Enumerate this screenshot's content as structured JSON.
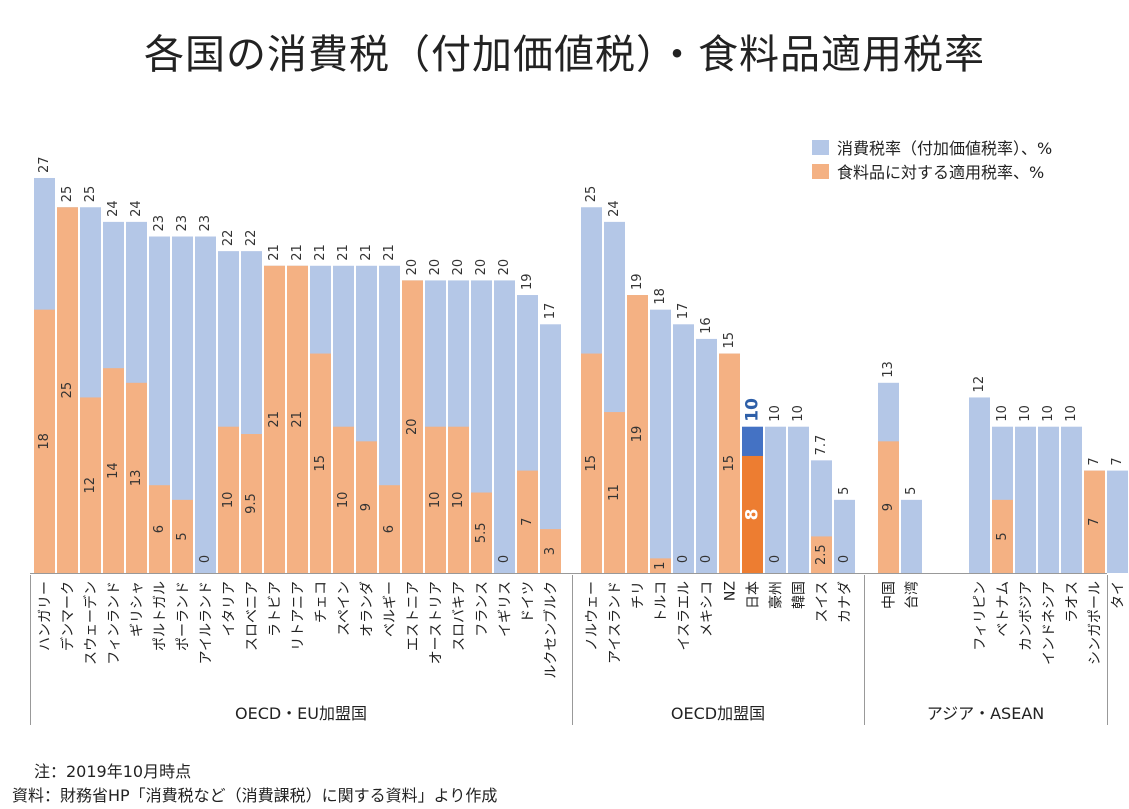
{
  "title": "各国の消費税（付加価値税）・食料品適用税率",
  "colors": {
    "vat": "#b4c7e7",
    "food": "#f4b183",
    "japan_vat": "#4472c4",
    "japan_food": "#ed7d31",
    "japan_vat_label": "#2e5fa8",
    "japan_food_label": "#ffffff"
  },
  "legend": {
    "vat": "消費税率（付加価値税率）、%",
    "food": "食料品に対する適用税率、%"
  },
  "chart_data": {
    "type": "bar",
    "title": "各国の消費税（付加価値税）・食料品適用税率",
    "ylim": [
      0,
      27
    ],
    "grid": false,
    "legend_position": "top-right",
    "series": [
      {
        "name": "消費税率（付加価値税率）、%",
        "key": "vat"
      },
      {
        "name": "食料品に対する適用税率、%",
        "key": "food"
      }
    ],
    "groups": [
      {
        "label": "OECD・EU加盟国",
        "countries": [
          {
            "name": "ハンガリー",
            "vat": 27,
            "vat_label": "27",
            "food": 18,
            "food_label": "18"
          },
          {
            "name": "デンマーク",
            "vat": 25,
            "vat_label": "25",
            "food": 25,
            "food_label": "25"
          },
          {
            "name": "スウェーデン",
            "vat": 25,
            "vat_label": "25",
            "food": 12,
            "food_label": "12"
          },
          {
            "name": "フィンランド",
            "vat": 24,
            "vat_label": "24",
            "food": 14,
            "food_label": "14"
          },
          {
            "name": "ギリシャ",
            "vat": 24,
            "vat_label": "24",
            "food": 13,
            "food_label": "13"
          },
          {
            "name": "ポルトガル",
            "vat": 23,
            "vat_label": "23",
            "food": 6,
            "food_label": "6"
          },
          {
            "name": "ポーランド",
            "vat": 23,
            "vat_label": "23",
            "food": 5,
            "food_label": "5"
          },
          {
            "name": "アイルランド",
            "vat": 23,
            "vat_label": "23",
            "food": 0,
            "food_label": "0"
          },
          {
            "name": "イタリア",
            "vat": 22,
            "vat_label": "22",
            "food": 10,
            "food_label": "10"
          },
          {
            "name": "スロベニア",
            "vat": 22,
            "vat_label": "22",
            "food": 9.5,
            "food_label": "9.5"
          },
          {
            "name": "ラトビア",
            "vat": 21,
            "vat_label": "21",
            "food": 21,
            "food_label": "21"
          },
          {
            "name": "リトアニア",
            "vat": 21,
            "vat_label": "21",
            "food": 21,
            "food_label": "21"
          },
          {
            "name": "チェコ",
            "vat": 21,
            "vat_label": "21",
            "food": 15,
            "food_label": "15"
          },
          {
            "name": "スペイン",
            "vat": 21,
            "vat_label": "21",
            "food": 10,
            "food_label": "10"
          },
          {
            "name": "オランダ",
            "vat": 21,
            "vat_label": "21",
            "food": 9,
            "food_label": "9"
          },
          {
            "name": "ベルギー",
            "vat": 21,
            "vat_label": "21",
            "food": 6,
            "food_label": "6"
          },
          {
            "name": "エストニア",
            "vat": 20,
            "vat_label": "20",
            "food": 20,
            "food_label": "20"
          },
          {
            "name": "オーストリア",
            "vat": 20,
            "vat_label": "20",
            "food": 10,
            "food_label": "10"
          },
          {
            "name": "スロバキア",
            "vat": 20,
            "vat_label": "20",
            "food": 10,
            "food_label": "10"
          },
          {
            "name": "フランス",
            "vat": 20,
            "vat_label": "20",
            "food": 5.5,
            "food_label": "5.5"
          },
          {
            "name": "イギリス",
            "vat": 20,
            "vat_label": "20",
            "food": 0,
            "food_label": "0"
          },
          {
            "name": "ドイツ",
            "vat": 19,
            "vat_label": "19",
            "food": 7,
            "food_label": "7"
          },
          {
            "name": "ルクセンブルク",
            "vat": 17,
            "vat_label": "17",
            "food": 3,
            "food_label": "3"
          }
        ]
      },
      {
        "label": "OECD加盟国",
        "countries": [
          {
            "name": "ノルウェー",
            "vat": 25,
            "vat_label": "25",
            "food": 15,
            "food_label": "15"
          },
          {
            "name": "アイスランド",
            "vat": 24,
            "vat_label": "24",
            "food": 11,
            "food_label": "11"
          },
          {
            "name": "チリ",
            "vat": 19,
            "vat_label": "19",
            "food": 19,
            "food_label": "19"
          },
          {
            "name": "トルコ",
            "vat": 18,
            "vat_label": "18",
            "food": 1,
            "food_label": "1"
          },
          {
            "name": "イスラエル",
            "vat": 17,
            "vat_label": "17",
            "food": 0,
            "food_label": "0"
          },
          {
            "name": "メキシコ",
            "vat": 16,
            "vat_label": "16",
            "food": 0,
            "food_label": "0"
          },
          {
            "name": "NZ",
            "vat": 15,
            "vat_label": "15",
            "food": 15,
            "food_label": "15"
          },
          {
            "name": "日本",
            "vat": 10,
            "vat_label": "10",
            "food": 8,
            "food_label": "8",
            "highlight": true
          },
          {
            "name": "豪州",
            "vat": 10,
            "vat_label": "10",
            "food": 0,
            "food_label": "0"
          },
          {
            "name": "韓国",
            "vat": 10,
            "vat_label": "10",
            "food": null,
            "food_label": ""
          },
          {
            "name": "スイス",
            "vat": 7.7,
            "vat_label": "7.7",
            "food": 2.5,
            "food_label": "2.5"
          },
          {
            "name": "カナダ",
            "vat": 5,
            "vat_label": "5",
            "food": 0,
            "food_label": "0"
          }
        ]
      },
      {
        "label": "アジア・ASEAN",
        "countries": [
          {
            "name": "中国",
            "vat": 13,
            "vat_label": "13",
            "food": 9,
            "food_label": "9"
          },
          {
            "name": "台湾",
            "vat": 5,
            "vat_label": "5",
            "food": null,
            "food_label": ""
          },
          {
            "gap": true
          },
          {
            "name": "フィリピン",
            "vat": 12,
            "vat_label": "12",
            "food": null,
            "food_label": ""
          },
          {
            "name": "ベトナム",
            "vat": 10,
            "vat_label": "10",
            "food": 5,
            "food_label": "5"
          },
          {
            "name": "カンボジア",
            "vat": 10,
            "vat_label": "10",
            "food": null,
            "food_label": ""
          },
          {
            "name": "インドネシア",
            "vat": 10,
            "vat_label": "10",
            "food": null,
            "food_label": ""
          },
          {
            "name": "ラオス",
            "vat": 10,
            "vat_label": "10",
            "food": null,
            "food_label": ""
          },
          {
            "name": "シンガポール",
            "vat": 7,
            "vat_label": "7",
            "food": 7,
            "food_label": "7"
          },
          {
            "name": "タイ",
            "vat": 7,
            "vat_label": "7",
            "food": null,
            "food_label": ""
          }
        ]
      }
    ]
  },
  "notes": {
    "note1": "注：2019年10月時点",
    "note2": "資料：財務省HP「消費税など（消費課税）に関する資料」より作成"
  }
}
